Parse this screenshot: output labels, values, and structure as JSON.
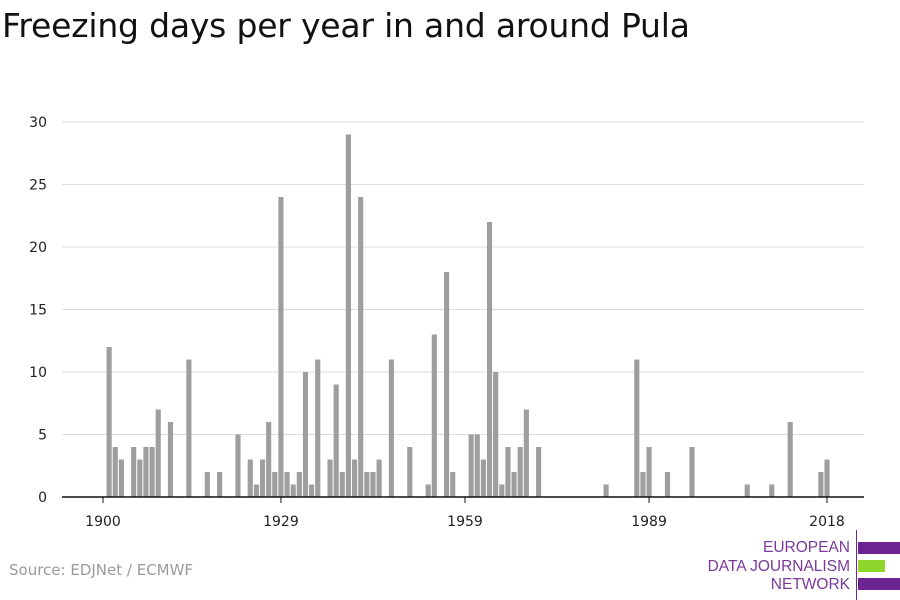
{
  "title": "Freezing days per year in and around Pula",
  "source": "Source: EDJNet / ECMWF",
  "logo": {
    "lines": [
      "EUROPEAN",
      "DATA JOURNALISM",
      "NETWORK"
    ],
    "colors": {
      "purple": "#6c2490",
      "green": "#8fd62c",
      "text": "#7b3a9a"
    }
  },
  "colors": {
    "bar": "#9e9e9e",
    "grid": "#dcdcdc",
    "axis": "#111111",
    "tick_label": "#222222"
  },
  "chart_data": {
    "type": "bar",
    "title": "Freezing days per year in and around Pula",
    "xlabel": "",
    "ylabel": "",
    "x_tick_labels": [
      "1900",
      "1929",
      "1959",
      "1989",
      "2018"
    ],
    "y_tick_labels": [
      "0",
      "5",
      "10",
      "15",
      "20",
      "25",
      "30"
    ],
    "xlim": [
      1900,
      2018
    ],
    "ylim": [
      0,
      30
    ],
    "grid": true,
    "series": [
      {
        "x": [
          1900,
          1901,
          1902,
          1903,
          1904,
          1905,
          1906,
          1907,
          1908,
          1909,
          1910,
          1911,
          1912,
          1913,
          1914,
          1915,
          1916,
          1917,
          1918,
          1919,
          1920,
          1921,
          1922,
          1923,
          1924,
          1925,
          1926,
          1927,
          1928,
          1929,
          1930,
          1931,
          1932,
          1933,
          1934,
          1935,
          1936,
          1937,
          1938,
          1939,
          1940,
          1941,
          1942,
          1943,
          1944,
          1945,
          1946,
          1947,
          1948,
          1949,
          1950,
          1951,
          1952,
          1953,
          1954,
          1955,
          1956,
          1957,
          1958,
          1959,
          1960,
          1961,
          1962,
          1963,
          1964,
          1965,
          1966,
          1967,
          1968,
          1969,
          1970,
          1971,
          1972,
          1973,
          1974,
          1975,
          1976,
          1977,
          1978,
          1979,
          1980,
          1981,
          1982,
          1983,
          1984,
          1985,
          1986,
          1987,
          1988,
          1989,
          1990,
          1991,
          1992,
          1993,
          1994,
          1995,
          1996,
          1997,
          1998,
          1999,
          2000,
          2001,
          2002,
          2003,
          2004,
          2005,
          2006,
          2007,
          2008,
          2009,
          2010,
          2011,
          2012,
          2013,
          2014,
          2015,
          2016,
          2017,
          2018
        ],
        "values": [
          0,
          12,
          4,
          3,
          0,
          4,
          3,
          4,
          4,
          7,
          0,
          6,
          0,
          0,
          11,
          0,
          0,
          2,
          0,
          2,
          0,
          0,
          5,
          0,
          3,
          1,
          3,
          6,
          2,
          24,
          2,
          1,
          2,
          10,
          1,
          11,
          0,
          3,
          9,
          2,
          29,
          3,
          24,
          2,
          2,
          3,
          0,
          11,
          0,
          0,
          4,
          0,
          0,
          1,
          13,
          0,
          18,
          2,
          0,
          0,
          5,
          5,
          3,
          22,
          10,
          1,
          4,
          2,
          4,
          7,
          0,
          4,
          0,
          0,
          0,
          0,
          0,
          0,
          0,
          0,
          0,
          0,
          1,
          0,
          0,
          0,
          0,
          11,
          2,
          4,
          0,
          0,
          2,
          0,
          0,
          0,
          4,
          0,
          0,
          0,
          0,
          0,
          0,
          0,
          0,
          1,
          0,
          0,
          0,
          1,
          0,
          0,
          6,
          0,
          0,
          0,
          0,
          2,
          3
        ]
      }
    ]
  }
}
